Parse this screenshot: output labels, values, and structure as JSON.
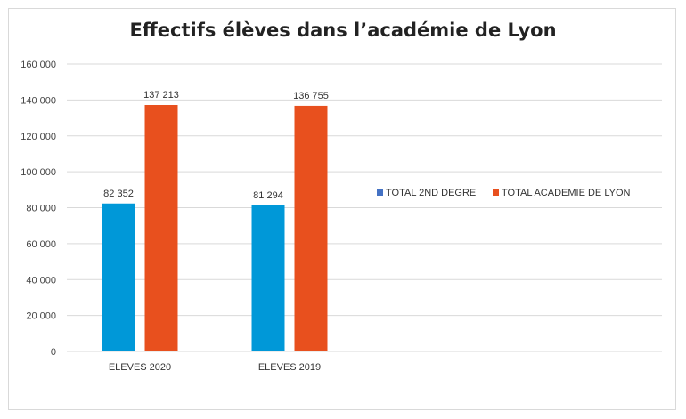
{
  "chart_data": {
    "type": "bar",
    "title": "Effectifs élèves dans l’académie de Lyon",
    "categories": [
      "ELEVES 2020",
      "ELEVES 2019"
    ],
    "series": [
      {
        "name": "TOTAL 2ND DEGRE",
        "values": [
          82352,
          81294
        ],
        "labels": [
          "82 352",
          "81 294"
        ],
        "color": "#0098d8"
      },
      {
        "name": "TOTAL ACADEMIE DE LYON",
        "values": [
          137213,
          136755
        ],
        "labels": [
          "137 213",
          "136 755"
        ],
        "color": "#e8501e"
      }
    ],
    "yticks": [
      0,
      20000,
      40000,
      60000,
      80000,
      100000,
      120000,
      140000,
      160000
    ],
    "ytick_labels": [
      "0",
      "20 000",
      "40 000",
      "60 000",
      "80 000",
      "100 000",
      "120 000",
      "140 000",
      "160 000"
    ],
    "ylim": [
      0,
      160000
    ],
    "grid": true,
    "legend_position": "right",
    "xlabel": "",
    "ylabel": ""
  }
}
